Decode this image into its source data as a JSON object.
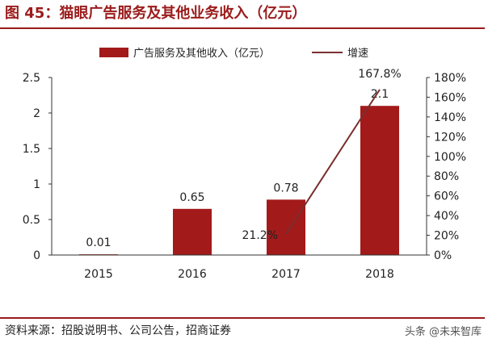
{
  "figure_title": "图 45：猫眼广告服务及其他业务收入（亿元）",
  "source_note": "资料来源：招股说明书、公司公告，招商证券",
  "watermark": "头条 @未来智库",
  "colors": {
    "bar": "#a31a1a",
    "line": "#7a2f2f",
    "accent": "#9b1b1b"
  },
  "chart_data": {
    "type": "bar",
    "categories": [
      "2015",
      "2016",
      "2017",
      "2018"
    ],
    "series": [
      {
        "name": "广告服务及其他收入（亿元）",
        "type": "bar",
        "axis": "left",
        "values": [
          0.01,
          0.65,
          0.78,
          2.1
        ],
        "labels": [
          "0.01",
          "0.65",
          "0.78",
          "2.1"
        ]
      },
      {
        "name": "增速",
        "type": "line",
        "axis": "right",
        "values": [
          null,
          null,
          21.2,
          167.8
        ],
        "labels": [
          "",
          "",
          "21.2%",
          "167.8%"
        ]
      }
    ],
    "y_left": {
      "min": 0,
      "max": 2.5,
      "ticks": [
        "0",
        "0.5",
        "1",
        "1.5",
        "2",
        "2.5"
      ]
    },
    "y_right": {
      "min": 0,
      "max": 180,
      "ticks": [
        "0%",
        "20%",
        "40%",
        "60%",
        "80%",
        "100%",
        "120%",
        "140%",
        "160%",
        "180%"
      ]
    },
    "legend_position": "top",
    "grid": false
  }
}
